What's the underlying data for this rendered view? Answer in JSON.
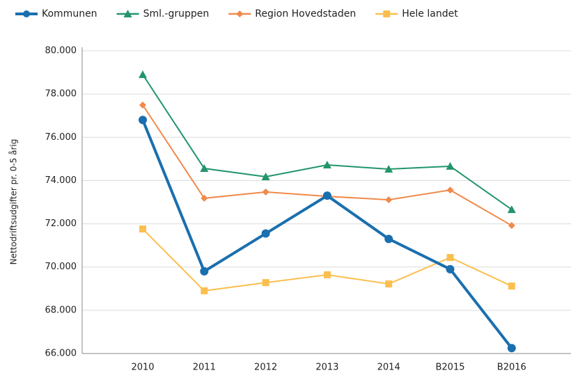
{
  "chart_data": {
    "type": "line",
    "y_label": "Nettodriftsudgifter pr. 0-5 årig",
    "categories": [
      "2010",
      "2011",
      "2012",
      "2013",
      "2014",
      "B2015",
      "B2016"
    ],
    "series": [
      {
        "name": "Kommunen",
        "color": "#1a6fae",
        "marker": "circle",
        "values": [
          76800,
          69800,
          71550,
          73300,
          71300,
          69900,
          66250
        ]
      },
      {
        "name": "Sml.-gruppen",
        "color": "#22956a",
        "marker": "triangle",
        "values": [
          78900,
          74560,
          74175,
          74720,
          74530,
          74660,
          72660
        ]
      },
      {
        "name": "Region Hovedstaden",
        "color": "#f0894a",
        "marker": "diamond",
        "values": [
          77490,
          73180,
          73470,
          73270,
          73110,
          73560,
          71920
        ]
      },
      {
        "name": "Hele landet",
        "color": "#fbbf4f",
        "marker": "square",
        "values": [
          71760,
          68900,
          69280,
          69640,
          69220,
          70440,
          69120
        ]
      }
    ],
    "ylim": [
      66000,
      80000
    ],
    "yticks": [
      {
        "value": 66000,
        "label": "66.000"
      },
      {
        "value": 68000,
        "label": "68.000"
      },
      {
        "value": 70000,
        "label": "70.000"
      },
      {
        "value": 72000,
        "label": "72.000"
      },
      {
        "value": 74000,
        "label": "74.000"
      },
      {
        "value": 76000,
        "label": "76.000"
      },
      {
        "value": 78000,
        "label": "78.000"
      },
      {
        "value": 80000,
        "label": "80.000"
      }
    ],
    "grid": true
  }
}
